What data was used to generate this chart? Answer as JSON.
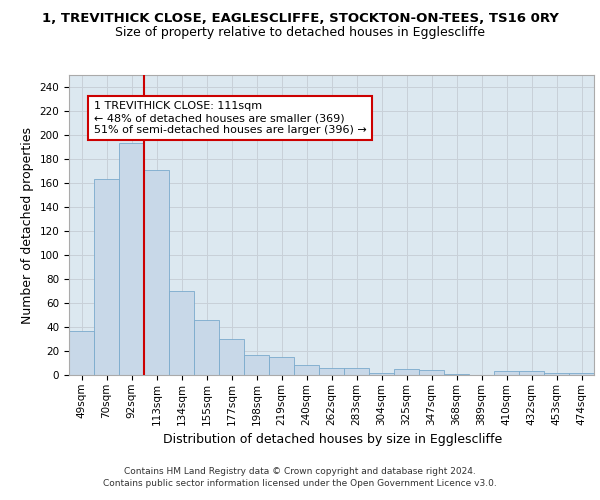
{
  "title_line1": "1, TREVITHICK CLOSE, EAGLESCLIFFE, STOCKTON-ON-TEES, TS16 0RY",
  "title_line2": "Size of property relative to detached houses in Egglescliffe",
  "xlabel": "Distribution of detached houses by size in Egglescliffe",
  "ylabel": "Number of detached properties",
  "footer_line1": "Contains HM Land Registry data © Crown copyright and database right 2024.",
  "footer_line2": "Contains public sector information licensed under the Open Government Licence v3.0.",
  "annotation_line1": "1 TREVITHICK CLOSE: 111sqm",
  "annotation_line2": "← 48% of detached houses are smaller (369)",
  "annotation_line3": "51% of semi-detached houses are larger (396) →",
  "categories": [
    "49sqm",
    "70sqm",
    "92sqm",
    "113sqm",
    "134sqm",
    "155sqm",
    "177sqm",
    "198sqm",
    "219sqm",
    "240sqm",
    "262sqm",
    "283sqm",
    "304sqm",
    "325sqm",
    "347sqm",
    "368sqm",
    "389sqm",
    "410sqm",
    "432sqm",
    "453sqm",
    "474sqm"
  ],
  "values": [
    37,
    163,
    193,
    171,
    70,
    46,
    30,
    17,
    15,
    8,
    6,
    6,
    2,
    5,
    4,
    1,
    0,
    3,
    3,
    2,
    2
  ],
  "bar_color": "#c8d8e8",
  "bar_edge_color": "#7aaacc",
  "vline_color": "#cc0000",
  "vline_position": 2.5,
  "ylim": [
    0,
    250
  ],
  "yticks": [
    0,
    20,
    40,
    60,
    80,
    100,
    120,
    140,
    160,
    180,
    200,
    220,
    240
  ],
  "grid_color": "#c8d0d8",
  "ax_facecolor": "#dce8f0",
  "background_color": "#ffffff",
  "annotation_box_facecolor": "#ffffff",
  "annotation_box_edgecolor": "#cc0000",
  "title_fontsize": 9.5,
  "subtitle_fontsize": 9,
  "ylabel_fontsize": 9,
  "xlabel_fontsize": 9,
  "tick_fontsize": 7.5,
  "annotation_fontsize": 8,
  "footer_fontsize": 6.5
}
